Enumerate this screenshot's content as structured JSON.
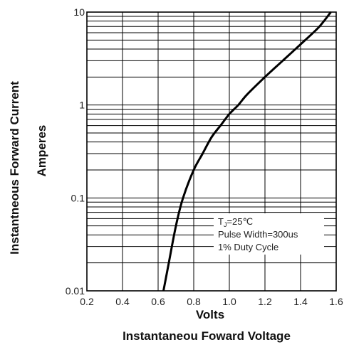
{
  "chart_data": {
    "type": "line",
    "title": "",
    "xlabel": "Volts",
    "xlabel_sub": "Instantaneou Foward Voltage",
    "ylabel": "Instantneous Forward Current",
    "ylabel_sub": "Amperes",
    "xlim": [
      0.2,
      1.6
    ],
    "ylim": [
      0.01,
      10
    ],
    "y_scale": "log",
    "grid": true,
    "x_ticks": [
      "0.2",
      "0.4",
      "0.6",
      "0.8",
      "1.0",
      "1.2",
      "1.4",
      "1.6"
    ],
    "y_ticks": [
      "0.01",
      "0.1",
      "1",
      "10"
    ],
    "annotations": [
      {
        "prefix": "T",
        "sub": "J",
        "suffix": "=25℃"
      },
      {
        "text": "Pulse Width=300us"
      },
      {
        "text": "1% Duty Cycle"
      }
    ],
    "series": [
      {
        "x": [
          0.63,
          0.66,
          0.7,
          0.74,
          0.8,
          0.85,
          0.9,
          0.95,
          1.0,
          1.05,
          1.1,
          1.2,
          1.3,
          1.4,
          1.5,
          1.57
        ],
        "y": [
          0.01,
          0.02,
          0.05,
          0.1,
          0.2,
          0.3,
          0.45,
          0.6,
          0.8,
          1.0,
          1.3,
          2.0,
          3.0,
          4.5,
          6.8,
          10.0
        ]
      }
    ],
    "color": "#000000"
  }
}
